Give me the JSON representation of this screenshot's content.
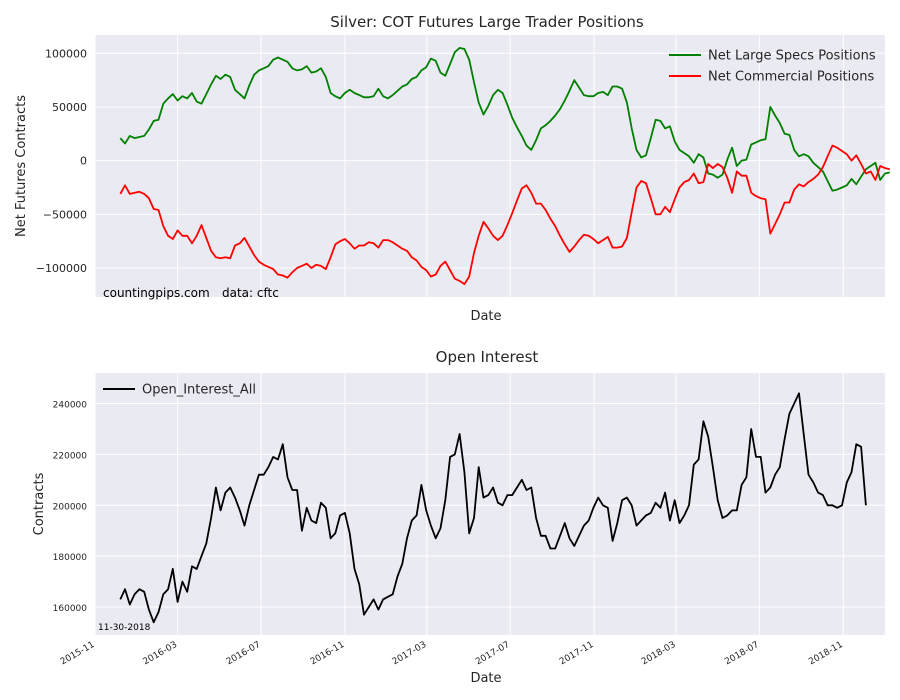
{
  "chart_data": [
    {
      "type": "line",
      "title": "Silver: COT Futures Large Trader Positions",
      "xlabel": "Date",
      "ylabel": "Net Futures Contracts",
      "ylim": [
        -127000,
        117000
      ],
      "yticks": [
        100000,
        50000,
        0,
        -50000,
        -100000
      ],
      "ytick_labels": [
        "100000",
        "50000",
        "0",
        "−50000",
        "−100000"
      ],
      "grid": true,
      "legend_position": "top-right",
      "annotations": [
        "countingpips.com",
        "data: cftc"
      ],
      "x_start": "2015-12-08",
      "x_step_days": 7,
      "series": [
        {
          "name": "Net Large Specs Positions",
          "color": "#008000",
          "values": [
            21000,
            16000,
            23000,
            21000,
            22000,
            23000,
            29000,
            37000,
            38000,
            53000,
            58000,
            62000,
            56000,
            60000,
            58000,
            63000,
            55000,
            53000,
            62000,
            71000,
            79000,
            76000,
            80000,
            78000,
            66000,
            62000,
            58000,
            70000,
            80000,
            84000,
            86000,
            88000,
            94000,
            96000,
            94000,
            92000,
            86000,
            84000,
            85000,
            88000,
            82000,
            83000,
            86000,
            78000,
            63000,
            60000,
            58000,
            63000,
            66000,
            63000,
            61000,
            59000,
            59000,
            60000,
            67000,
            60000,
            58000,
            61000,
            65000,
            69000,
            71000,
            76000,
            78000,
            84000,
            87000,
            95000,
            93000,
            82000,
            79000,
            90000,
            101000,
            105000,
            104000,
            94000,
            73000,
            54000,
            43000,
            51000,
            61000,
            66000,
            63000,
            52000,
            40000,
            31000,
            23000,
            14000,
            10000,
            19000,
            30000,
            33000,
            37000,
            42000,
            48000,
            56000,
            65000,
            75000,
            68000,
            61000,
            60000,
            60000,
            63000,
            64000,
            61000,
            69000,
            69000,
            67000,
            54000,
            30000,
            10000,
            3000,
            5000,
            21000,
            38000,
            37000,
            30000,
            32000,
            18000,
            10000,
            7000,
            4000,
            -2000,
            6000,
            3000,
            -12000,
            -13000,
            -16000,
            -13000,
            1000,
            12000,
            -5000,
            0,
            1000,
            15000,
            17000,
            19000,
            20000,
            50000,
            42000,
            35000,
            25000,
            24000,
            10000,
            4000,
            6000,
            4000,
            -2000,
            -6000,
            -10000,
            -19000,
            -28000,
            -27000,
            -25000,
            -23000,
            -17000,
            -22000,
            -15000,
            -8000,
            -5000,
            -2000,
            -18000,
            -12000,
            -11000
          ]
        },
        {
          "name": "Net Commercial Positions",
          "color": "#ff0000",
          "values": [
            -31000,
            -23000,
            -31000,
            -30000,
            -29000,
            -31000,
            -35000,
            -45000,
            -46000,
            -61000,
            -70000,
            -73000,
            -65000,
            -70000,
            -70000,
            -77000,
            -70000,
            -60000,
            -72000,
            -84000,
            -90000,
            -91000,
            -90000,
            -91000,
            -79000,
            -77000,
            -72000,
            -80000,
            -88000,
            -94000,
            -97000,
            -99000,
            -101000,
            -106000,
            -107000,
            -109000,
            -104000,
            -100000,
            -98000,
            -96000,
            -100000,
            -97000,
            -98000,
            -101000,
            -90000,
            -78000,
            -75000,
            -73000,
            -77000,
            -82000,
            -79000,
            -79000,
            -76000,
            -77000,
            -81000,
            -74000,
            -74000,
            -76000,
            -79000,
            -82000,
            -84000,
            -90000,
            -93000,
            -99000,
            -102000,
            -108000,
            -106000,
            -98000,
            -94000,
            -102000,
            -110000,
            -112000,
            -115000,
            -108000,
            -86000,
            -70000,
            -57000,
            -63000,
            -70000,
            -74000,
            -70000,
            -60000,
            -49000,
            -37000,
            -26000,
            -23000,
            -30000,
            -40000,
            -40000,
            -46000,
            -54000,
            -61000,
            -70000,
            -78000,
            -85000,
            -80000,
            -74000,
            -69000,
            -70000,
            -73000,
            -77000,
            -74000,
            -71000,
            -81000,
            -81000,
            -80000,
            -72000,
            -48000,
            -25000,
            -19000,
            -21000,
            -35000,
            -50000,
            -50000,
            -43000,
            -48000,
            -36000,
            -25000,
            -20000,
            -18000,
            -12000,
            -21000,
            -20000,
            -3000,
            -7000,
            -3000,
            -6000,
            -16000,
            -30000,
            -10000,
            -14000,
            -14000,
            -30000,
            -33000,
            -35000,
            -36000,
            -68000,
            -59000,
            -50000,
            -39000,
            -39000,
            -27000,
            -22000,
            -24000,
            -20000,
            -17000,
            -13000,
            -6000,
            4000,
            14000,
            12000,
            9000,
            6000,
            0,
            5000,
            -3000,
            -12000,
            -10000,
            -18000,
            -5000,
            -7000,
            -8000
          ]
        }
      ]
    },
    {
      "type": "line",
      "title": "Open Interest",
      "xlabel": "Date",
      "ylabel": "Contracts",
      "ylim": [
        149000,
        252000
      ],
      "yticks": [
        160000,
        180000,
        200000,
        220000,
        240000
      ],
      "grid": true,
      "legend_position": "top-left",
      "annotations": [
        "11-30-2018"
      ],
      "x_start": "2015-12-08",
      "x_step_days": 7,
      "x_ticks": [
        "2015-11",
        "2016-03",
        "2016-07",
        "2016-11",
        "2017-03",
        "2017-07",
        "2017-11",
        "2018-03",
        "2018-07",
        "2018-11"
      ],
      "series": [
        {
          "name": "Open_Interest_All",
          "color": "#000000",
          "values": [
            163000,
            167000,
            161000,
            165000,
            167000,
            166000,
            159000,
            154000,
            158000,
            165000,
            167000,
            175000,
            162000,
            170000,
            166000,
            176000,
            175000,
            180000,
            185000,
            195000,
            207000,
            198000,
            205000,
            207000,
            203000,
            198000,
            192000,
            200000,
            206000,
            212000,
            212000,
            215000,
            219000,
            218000,
            224000,
            211000,
            206000,
            206000,
            190000,
            199000,
            194000,
            193000,
            201000,
            199000,
            187000,
            189000,
            196000,
            197000,
            189000,
            175000,
            169000,
            157000,
            160000,
            163000,
            159000,
            163000,
            164000,
            165000,
            172000,
            177000,
            187000,
            194000,
            196000,
            208000,
            198000,
            192000,
            187000,
            191000,
            202000,
            219000,
            220000,
            228000,
            213000,
            189000,
            195000,
            215000,
            203000,
            204000,
            207000,
            201000,
            200000,
            204000,
            204000,
            207000,
            210000,
            206000,
            207000,
            195000,
            188000,
            188000,
            183000,
            183000,
            188000,
            193000,
            187000,
            184000,
            188000,
            192000,
            194000,
            199000,
            203000,
            200000,
            199000,
            186000,
            193000,
            202000,
            203000,
            200000,
            192000,
            194000,
            196000,
            197000,
            201000,
            199000,
            205000,
            194000,
            202000,
            193000,
            196000,
            200000,
            216000,
            218000,
            233000,
            227000,
            215000,
            202000,
            195000,
            196000,
            198000,
            198000,
            208000,
            211000,
            230000,
            219000,
            219000,
            205000,
            207000,
            212000,
            215000,
            226000,
            236000,
            240000,
            244000,
            228000,
            212000,
            209000,
            205000,
            204000,
            200000,
            200000,
            199000,
            200000,
            209000,
            213000,
            224000,
            223000,
            200000
          ]
        }
      ]
    }
  ]
}
